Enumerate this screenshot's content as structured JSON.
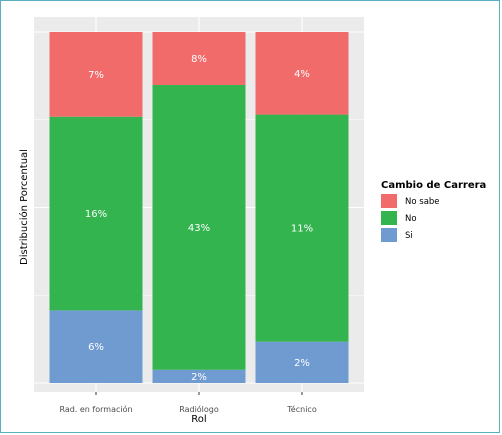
{
  "chart_data": {
    "type": "bar",
    "stacked": true,
    "normalized": true,
    "categories": [
      "Rad. en formación",
      "Radiólogo",
      "Técnico"
    ],
    "series": [
      {
        "name": "Si",
        "color": "#6f9bd1",
        "values": [
          6,
          2,
          2
        ],
        "labels": [
          "6%",
          "2%",
          "2%"
        ]
      },
      {
        "name": "No",
        "color": "#33b44f",
        "values": [
          16,
          43,
          11
        ],
        "labels": [
          "16%",
          "43%",
          "11%"
        ]
      },
      {
        "name": "No sabe",
        "color": "#f26b6b",
        "values": [
          7,
          8,
          4
        ],
        "labels": [
          "7%",
          "8%",
          "4%"
        ]
      }
    ],
    "stack_order_bottom_to_top": [
      "Si",
      "No",
      "No sabe"
    ],
    "xlabel": "Rol",
    "ylabel": "Distribución Porcentual",
    "y_tick_labels_shown": false,
    "panel_background": "#ebebeb",
    "grid": true,
    "legend": {
      "title": "Cambio de Carrera",
      "placement": "right",
      "items": [
        {
          "label": "No sabe",
          "color": "#f26b6b"
        },
        {
          "label": "No",
          "color": "#33b44f"
        },
        {
          "label": "Si",
          "color": "#6f9bd1"
        }
      ]
    }
  }
}
